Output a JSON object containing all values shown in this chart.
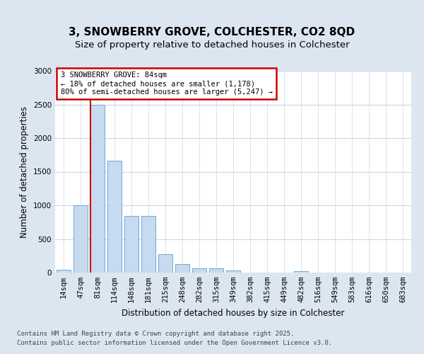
{
  "title_line1": "3, SNOWBERRY GROVE, COLCHESTER, CO2 8QD",
  "title_line2": "Size of property relative to detached houses in Colchester",
  "xlabel": "Distribution of detached houses by size in Colchester",
  "ylabel": "Number of detached properties",
  "bar_color": "#c8daf0",
  "bar_edge_color": "#6aaad6",
  "categories": [
    "14sqm",
    "47sqm",
    "81sqm",
    "114sqm",
    "148sqm",
    "181sqm",
    "215sqm",
    "248sqm",
    "282sqm",
    "315sqm",
    "349sqm",
    "382sqm",
    "415sqm",
    "449sqm",
    "482sqm",
    "516sqm",
    "549sqm",
    "583sqm",
    "616sqm",
    "650sqm",
    "683sqm"
  ],
  "values": [
    40,
    1000,
    2500,
    1660,
    840,
    840,
    270,
    125,
    60,
    60,
    30,
    0,
    0,
    0,
    20,
    0,
    0,
    0,
    0,
    0,
    0
  ],
  "vline_index": 2,
  "vline_color": "#cc0000",
  "annotation_text": "3 SNOWBERRY GROVE: 84sqm\n← 18% of detached houses are smaller (1,178)\n80% of semi-detached houses are larger (5,247) →",
  "annotation_box_facecolor": "#ffffff",
  "annotation_box_edgecolor": "#cc0000",
  "ylim_max": 3000,
  "yticks": [
    0,
    500,
    1000,
    1500,
    2000,
    2500,
    3000
  ],
  "fig_bg_color": "#dce6f1",
  "plot_bg_color": "#ffffff",
  "grid_color": "#c8d8e8",
  "footnote_line1": "Contains HM Land Registry data © Crown copyright and database right 2025.",
  "footnote_line2": "Contains public sector information licensed under the Open Government Licence v3.0.",
  "title_fontsize": 11,
  "subtitle_fontsize": 9.5,
  "tick_fontsize": 7.5,
  "axis_label_fontsize": 8.5,
  "annot_fontsize": 7.5,
  "footnote_fontsize": 6.5
}
